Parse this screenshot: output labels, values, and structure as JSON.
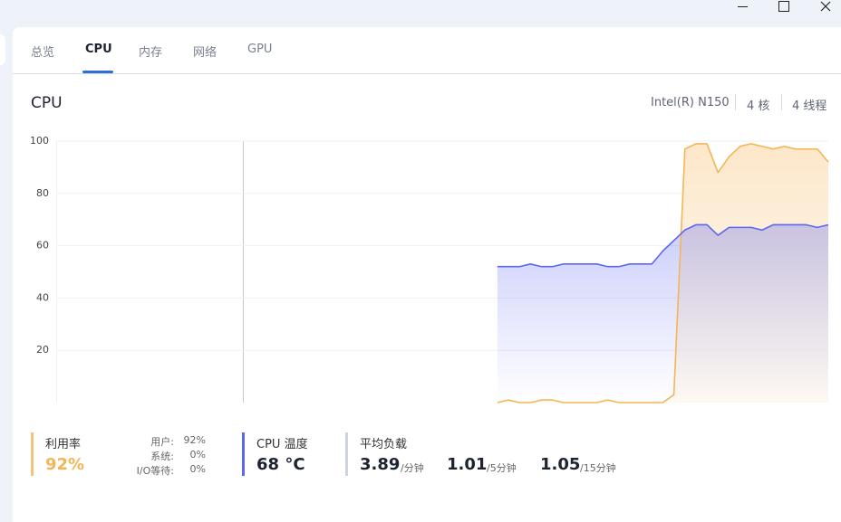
{
  "tabs": [
    "总览",
    "CPU",
    "内存",
    "网络",
    "GPU"
  ],
  "active_tab": 1,
  "header": {
    "title": "CPU",
    "info": [
      "Intel(R) N150",
      "4 核",
      "4 线程"
    ]
  },
  "chart_data": {
    "type": "line",
    "ylim": [
      0,
      100
    ],
    "yticks": [
      20,
      40,
      60,
      80,
      100
    ],
    "grid": true,
    "series": [
      {
        "color": "#f4b556",
        "fill": "#fde9cc",
        "values": [
          null,
          null,
          null,
          null,
          null,
          null,
          null,
          null,
          null,
          null,
          null,
          null,
          null,
          null,
          null,
          null,
          null,
          null,
          null,
          null,
          null,
          null,
          null,
          null,
          null,
          null,
          null,
          null,
          null,
          null,
          null,
          null,
          null,
          null,
          null,
          null,
          null,
          null,
          null,
          null,
          0,
          1,
          0,
          0,
          1,
          1,
          0,
          0,
          0,
          0,
          1,
          0,
          0,
          0,
          0,
          0,
          3,
          97,
          99,
          99,
          88,
          94,
          98,
          99,
          98,
          97,
          98,
          97,
          97,
          97,
          92
        ]
      },
      {
        "color": "#5b67f0",
        "fill": "#5b67f0",
        "values": [
          null,
          null,
          null,
          null,
          null,
          null,
          null,
          null,
          null,
          null,
          null,
          null,
          null,
          null,
          null,
          null,
          null,
          null,
          null,
          null,
          null,
          null,
          null,
          null,
          null,
          null,
          null,
          null,
          null,
          null,
          null,
          null,
          null,
          null,
          null,
          null,
          null,
          null,
          null,
          null,
          52,
          52,
          52,
          53,
          52,
          52,
          53,
          53,
          53,
          53,
          52,
          52,
          53,
          53,
          53,
          58,
          62,
          66,
          68,
          68,
          64,
          67,
          67,
          67,
          66,
          68,
          68,
          68,
          68,
          67,
          68
        ]
      }
    ]
  },
  "stats": {
    "usage": {
      "label": "利用率",
      "value": "92%",
      "details": [
        {
          "label": "用户:",
          "value": "92%"
        },
        {
          "label": "系统:",
          "value": "0%"
        },
        {
          "label": "I/O等待:",
          "value": "0%"
        }
      ]
    },
    "temperature": {
      "label": "CPU 温度",
      "value": "68 °C"
    },
    "load": {
      "label": "平均负载",
      "items": [
        {
          "value": "3.89",
          "unit": "/分钟"
        },
        {
          "value": "1.01",
          "unit": "/5分钟"
        },
        {
          "value": "1.05",
          "unit": "/15分钟"
        }
      ]
    }
  }
}
